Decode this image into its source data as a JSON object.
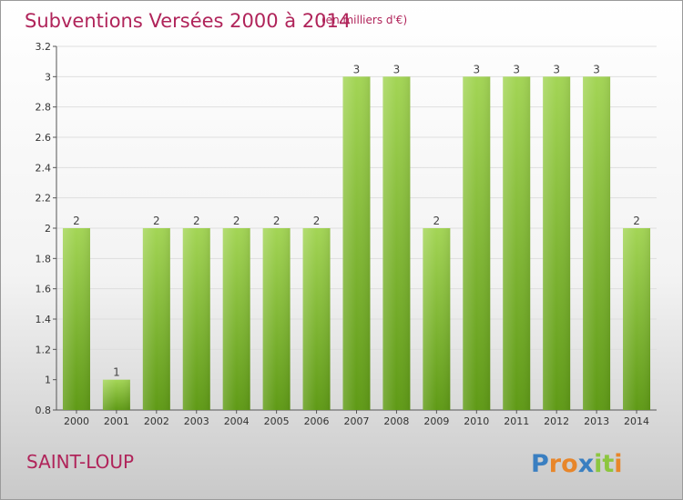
{
  "chart_data": {
    "type": "bar",
    "title": "Subventions Versées 2000 à 2014",
    "subtitle": "(en milliers d'€)",
    "categories": [
      "2000",
      "2001",
      "2002",
      "2003",
      "2004",
      "2005",
      "2006",
      "2007",
      "2008",
      "2009",
      "2010",
      "2011",
      "2012",
      "2013",
      "2014"
    ],
    "values": [
      2,
      1,
      2,
      2,
      2,
      2,
      2,
      3,
      3,
      2,
      3,
      3,
      3,
      3,
      2
    ],
    "data_labels": [
      "2",
      "1",
      "2",
      "2",
      "2",
      "2",
      "2",
      "3",
      "3",
      "2",
      "3",
      "3",
      "3",
      "3",
      "2"
    ],
    "ylim": [
      0.8,
      3.2
    ],
    "yticks": [
      0.8,
      1,
      1.2,
      1.4,
      1.6,
      1.8,
      2,
      2.2,
      2.4,
      2.6,
      2.8,
      3,
      3.2
    ],
    "ytick_labels": [
      "0.8",
      "1",
      "1.2",
      "1.4",
      "1.6",
      "1.8",
      "2",
      "2.2",
      "2.4",
      "2.6",
      "2.8",
      "3",
      "3.2"
    ],
    "grid": true,
    "bar_color": "#8cc63f"
  },
  "place_name": "SAINT-LOUP",
  "logo": {
    "letters": [
      "P",
      "r",
      "o",
      "x",
      "i",
      "t",
      "i"
    ],
    "colors": [
      "#3a7fc1",
      "#e8862a",
      "#e8862a",
      "#3a7fc1",
      "#8cc63f",
      "#8cc63f",
      "#e8862a"
    ]
  }
}
